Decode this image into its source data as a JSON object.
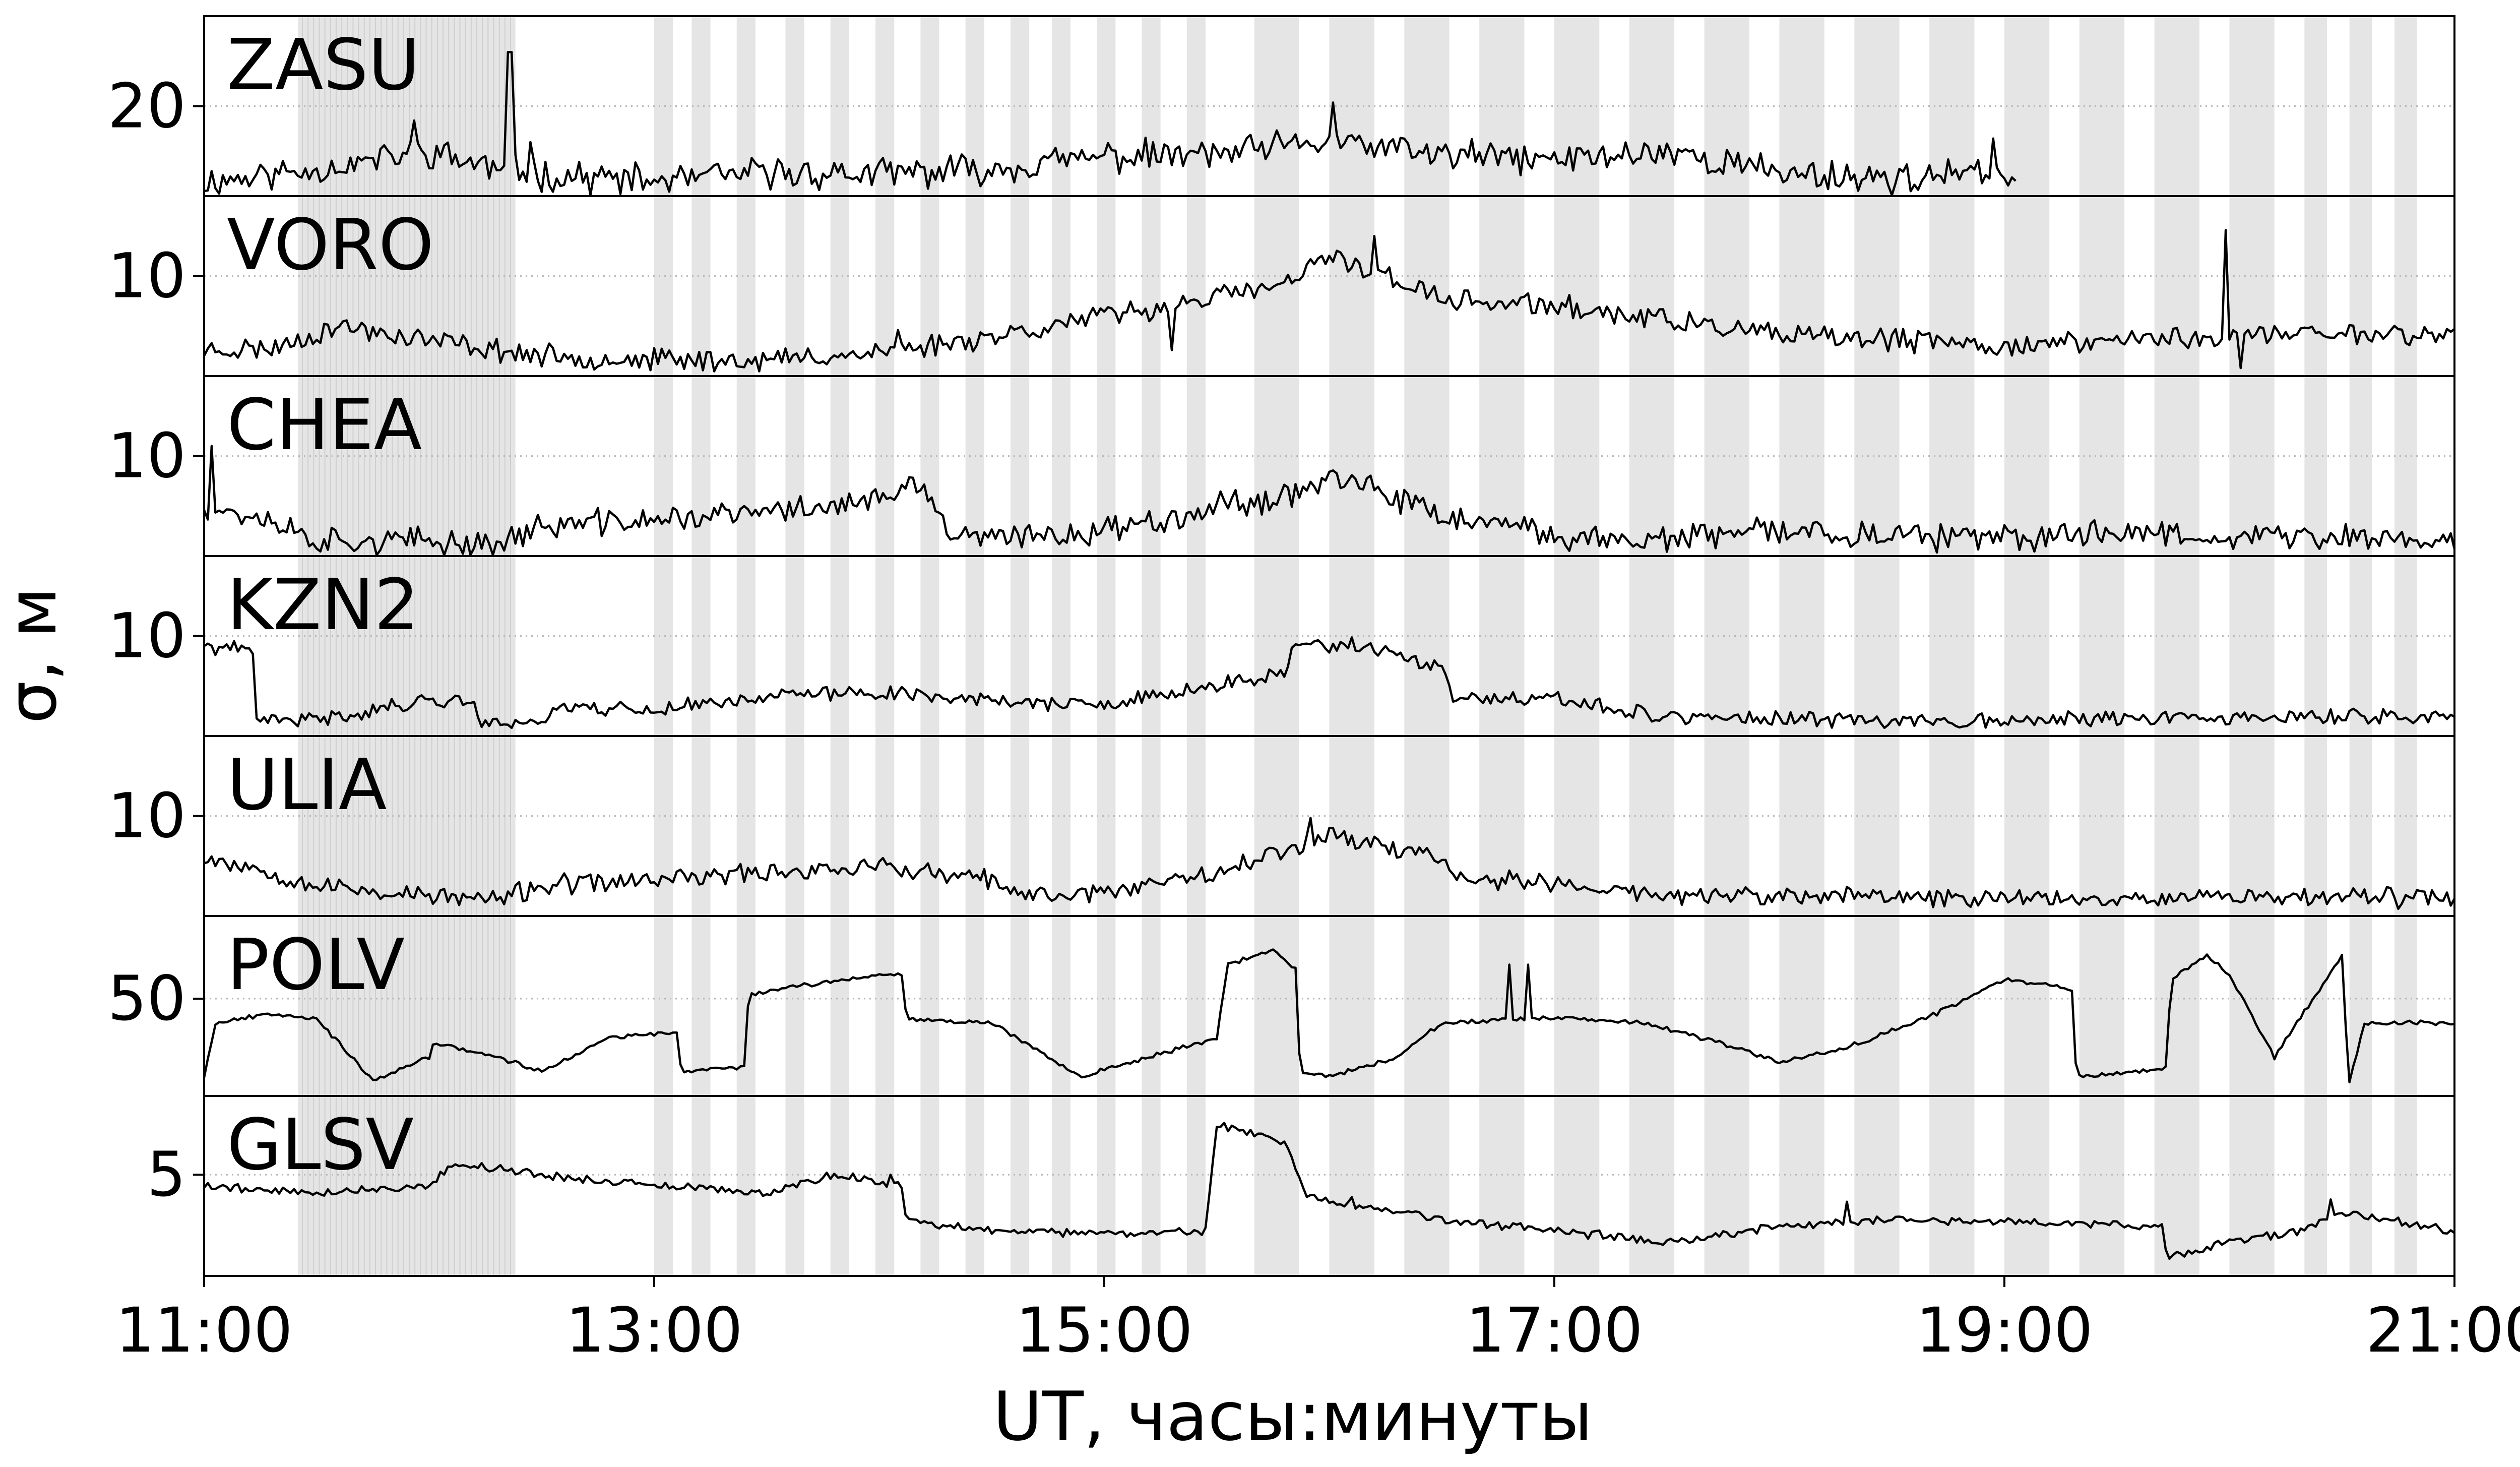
{
  "chart_data": {
    "type": "line",
    "layout": "stacked-panels",
    "xlabel": "UT, часы:минуты",
    "ylabel": "σ, м",
    "xlim": [
      "11:00",
      "21:00"
    ],
    "x_ticks": [
      "11:00",
      "13:00",
      "15:00",
      "17:00",
      "19:00",
      "21:00"
    ],
    "grid": "horizontal dotted at y ticks",
    "shaded_intervals": [
      [
        "11:25",
        "12:23"
      ],
      [
        "13:00",
        "13:05"
      ],
      [
        "13:10",
        "13:15"
      ],
      [
        "13:22",
        "13:27"
      ],
      [
        "13:35",
        "13:40"
      ],
      [
        "13:47",
        "13:52"
      ],
      [
        "13:59",
        "14:04"
      ],
      [
        "14:11",
        "14:16"
      ],
      [
        "14:23",
        "14:28"
      ],
      [
        "14:35",
        "14:40"
      ],
      [
        "14:46",
        "14:51"
      ],
      [
        "14:58",
        "15:03"
      ],
      [
        "15:10",
        "15:15"
      ],
      [
        "15:22",
        "15:27"
      ],
      [
        "15:40",
        "15:52"
      ],
      [
        "16:00",
        "16:12"
      ],
      [
        "16:20",
        "16:32"
      ],
      [
        "16:40",
        "16:52"
      ],
      [
        "17:00",
        "17:12"
      ],
      [
        "17:20",
        "17:32"
      ],
      [
        "17:40",
        "17:52"
      ],
      [
        "18:00",
        "18:12"
      ],
      [
        "18:20",
        "18:32"
      ],
      [
        "18:40",
        "18:52"
      ],
      [
        "19:00",
        "19:12"
      ],
      [
        "19:20",
        "19:32"
      ],
      [
        "19:40",
        "19:52"
      ],
      [
        "20:00",
        "20:12"
      ],
      [
        "20:20",
        "20:26"
      ],
      [
        "20:32",
        "20:38"
      ],
      [
        "20:44",
        "20:50"
      ]
    ],
    "panels": [
      {
        "station": "ZASU",
        "ylim": [
          15,
          25
        ],
        "yticks": [
          20
        ],
        "noise": 0.7,
        "seed": 11,
        "end": 19.05,
        "points": [
          [
            11.0,
            15.8
          ],
          [
            11.5,
            16.5
          ],
          [
            12.0,
            17.5
          ],
          [
            12.3,
            16.5
          ],
          [
            12.5,
            16.2
          ],
          [
            13.0,
            15.8
          ],
          [
            13.5,
            16.3
          ],
          [
            14.0,
            16.2
          ],
          [
            14.5,
            16.5
          ],
          [
            15.0,
            17.2
          ],
          [
            15.5,
            17.3
          ],
          [
            16.0,
            18.0
          ],
          [
            16.5,
            17.3
          ],
          [
            17.0,
            17.0
          ],
          [
            17.5,
            17.5
          ],
          [
            18.0,
            16.3
          ],
          [
            18.5,
            16.0
          ],
          [
            19.0,
            16.2
          ]
        ],
        "spikes": [
          [
            11.93,
            19.2
          ],
          [
            12.36,
            23.0
          ],
          [
            12.45,
            18.0
          ],
          [
            16.02,
            20.2
          ],
          [
            18.95,
            18.2
          ]
        ]
      },
      {
        "station": "VORO",
        "ylim": [
          5,
          14
        ],
        "yticks": [
          10
        ],
        "noise": 0.45,
        "seed": 23,
        "points": [
          [
            11.0,
            6.3
          ],
          [
            11.3,
            6.4
          ],
          [
            11.6,
            7.5
          ],
          [
            12.0,
            6.8
          ],
          [
            12.5,
            6.0
          ],
          [
            13.0,
            5.8
          ],
          [
            13.5,
            5.8
          ],
          [
            14.0,
            6.2
          ],
          [
            14.5,
            7.0
          ],
          [
            15.0,
            8.0
          ],
          [
            15.3,
            8.5
          ],
          [
            15.5,
            9.0
          ],
          [
            15.8,
            9.5
          ],
          [
            16.0,
            11.0
          ],
          [
            16.3,
            9.8
          ],
          [
            16.5,
            8.8
          ],
          [
            17.0,
            8.5
          ],
          [
            17.5,
            7.8
          ],
          [
            18.0,
            7.0
          ],
          [
            18.5,
            6.8
          ],
          [
            19.0,
            6.5
          ],
          [
            19.5,
            6.8
          ],
          [
            20.0,
            7.0
          ],
          [
            20.5,
            7.2
          ],
          [
            21.0,
            7.0
          ]
        ],
        "spikes": [
          [
            14.08,
            7.3
          ],
          [
            15.3,
            6.3
          ],
          [
            16.2,
            12.0
          ],
          [
            19.98,
            12.3
          ],
          [
            20.05,
            5.4
          ]
        ]
      },
      {
        "station": "CHEA",
        "ylim": [
          5,
          14
        ],
        "yticks": [
          10
        ],
        "noise": 0.55,
        "seed": 37,
        "points": [
          [
            11.0,
            7.5
          ],
          [
            11.3,
            6.8
          ],
          [
            11.5,
            5.8
          ],
          [
            12.0,
            5.7
          ],
          [
            12.3,
            5.6
          ],
          [
            12.5,
            6.5
          ],
          [
            13.0,
            6.8
          ],
          [
            13.5,
            7.2
          ],
          [
            14.0,
            7.8
          ],
          [
            14.2,
            8.5
          ],
          [
            14.3,
            6.2
          ],
          [
            14.5,
            5.8
          ],
          [
            15.0,
            6.3
          ],
          [
            15.5,
            7.5
          ],
          [
            15.8,
            8.0
          ],
          [
            16.0,
            9.0
          ],
          [
            16.3,
            7.8
          ],
          [
            16.5,
            7.0
          ],
          [
            17.0,
            6.0
          ],
          [
            17.5,
            5.8
          ],
          [
            18.0,
            6.3
          ],
          [
            18.5,
            6.0
          ],
          [
            19.0,
            5.8
          ],
          [
            19.5,
            6.3
          ],
          [
            20.0,
            6.0
          ],
          [
            21.0,
            5.8
          ]
        ],
        "spikes": [
          [
            11.03,
            10.5
          ]
        ]
      },
      {
        "station": "KZN2",
        "ylim": [
          5,
          14
        ],
        "yticks": [
          10
        ],
        "noise": 0.3,
        "seed": 41,
        "points": [
          [
            11.0,
            9.5
          ],
          [
            11.22,
            9.2
          ],
          [
            11.23,
            5.8
          ],
          [
            11.5,
            5.8
          ],
          [
            12.0,
            6.8
          ],
          [
            12.2,
            6.8
          ],
          [
            12.21,
            5.6
          ],
          [
            12.5,
            5.8
          ],
          [
            12.6,
            6.5
          ],
          [
            13.0,
            6.3
          ],
          [
            13.5,
            7.0
          ],
          [
            14.0,
            7.2
          ],
          [
            14.5,
            6.8
          ],
          [
            15.0,
            6.5
          ],
          [
            15.5,
            7.5
          ],
          [
            15.8,
            8.2
          ],
          [
            15.85,
            9.5
          ],
          [
            16.1,
            9.5
          ],
          [
            16.5,
            8.5
          ],
          [
            16.55,
            6.8
          ],
          [
            17.0,
            6.8
          ],
          [
            17.5,
            6.0
          ],
          [
            18.0,
            5.8
          ],
          [
            19.0,
            5.8
          ],
          [
            20.0,
            5.9
          ],
          [
            21.0,
            6.0
          ]
        ],
        "spikes": []
      },
      {
        "station": "ULIA",
        "ylim": [
          5,
          14
        ],
        "yticks": [
          10
        ],
        "noise": 0.4,
        "seed": 53,
        "points": [
          [
            11.0,
            8.0
          ],
          [
            11.3,
            7.2
          ],
          [
            11.5,
            6.5
          ],
          [
            12.0,
            6.0
          ],
          [
            12.3,
            5.8
          ],
          [
            12.5,
            6.5
          ],
          [
            13.0,
            6.8
          ],
          [
            13.5,
            7.2
          ],
          [
            14.0,
            7.5
          ],
          [
            14.3,
            7.0
          ],
          [
            14.5,
            6.8
          ],
          [
            14.6,
            6.0
          ],
          [
            15.0,
            6.2
          ],
          [
            15.5,
            7.3
          ],
          [
            15.8,
            8.2
          ],
          [
            16.0,
            9.2
          ],
          [
            16.3,
            8.3
          ],
          [
            16.5,
            8.0
          ],
          [
            16.55,
            7.0
          ],
          [
            17.0,
            6.6
          ],
          [
            17.5,
            6.0
          ],
          [
            18.0,
            6.0
          ],
          [
            19.0,
            5.9
          ],
          [
            20.0,
            6.0
          ],
          [
            21.0,
            5.9
          ]
        ],
        "spikes": [
          [
            15.92,
            9.9
          ]
        ]
      },
      {
        "station": "POLV",
        "ylim": [
          30,
          67
        ],
        "yticks": [
          50
        ],
        "noise": 0.35,
        "seed": 67,
        "points": [
          [
            11.0,
            34.0
          ],
          [
            11.05,
            45.0
          ],
          [
            11.3,
            47.0
          ],
          [
            11.5,
            46.0
          ],
          [
            11.75,
            33.0
          ],
          [
            12.0,
            38.0
          ],
          [
            12.02,
            41.0
          ],
          [
            12.3,
            38.0
          ],
          [
            12.5,
            35.0
          ],
          [
            12.8,
            42.0
          ],
          [
            13.1,
            43.0
          ],
          [
            13.12,
            35.0
          ],
          [
            13.4,
            36.0
          ],
          [
            13.42,
            51.0
          ],
          [
            14.0,
            55.0
          ],
          [
            14.1,
            55.0
          ],
          [
            14.12,
            46.0
          ],
          [
            14.5,
            45.0
          ],
          [
            14.9,
            34.0
          ],
          [
            15.2,
            38.0
          ],
          [
            15.5,
            42.0
          ],
          [
            15.55,
            57.0
          ],
          [
            15.75,
            60.0
          ],
          [
            15.85,
            56.0
          ],
          [
            15.87,
            35.0
          ],
          [
            16.0,
            34.0
          ],
          [
            16.3,
            38.0
          ],
          [
            16.5,
            45.0
          ],
          [
            17.0,
            46.0
          ],
          [
            17.4,
            45.0
          ],
          [
            17.8,
            40.0
          ],
          [
            18.0,
            37.0
          ],
          [
            18.3,
            40.0
          ],
          [
            18.7,
            47.0
          ],
          [
            19.0,
            54.0
          ],
          [
            19.3,
            52.0
          ],
          [
            19.32,
            34.0
          ],
          [
            19.6,
            35.0
          ],
          [
            19.72,
            36.0
          ],
          [
            19.74,
            54.0
          ],
          [
            19.9,
            59.0
          ],
          [
            20.0,
            55.0
          ],
          [
            20.2,
            38.0
          ],
          [
            20.5,
            59.0
          ],
          [
            20.53,
            32.0
          ],
          [
            20.6,
            45.0
          ],
          [
            21.0,
            45.0
          ]
        ],
        "spikes": [
          [
            16.8,
            57.0
          ],
          [
            16.88,
            57.0
          ]
        ]
      },
      {
        "station": "GLSV",
        "ylim": [
          0.5,
          8.5
        ],
        "yticks": [
          5
        ],
        "noise": 0.15,
        "seed": 79,
        "points": [
          [
            11.0,
            4.5
          ],
          [
            11.5,
            4.2
          ],
          [
            12.0,
            4.5
          ],
          [
            12.1,
            5.5
          ],
          [
            12.5,
            5.0
          ],
          [
            13.0,
            4.5
          ],
          [
            13.5,
            4.2
          ],
          [
            13.8,
            5.0
          ],
          [
            14.1,
            4.5
          ],
          [
            14.12,
            3.0
          ],
          [
            14.5,
            2.5
          ],
          [
            15.0,
            2.4
          ],
          [
            15.45,
            2.5
          ],
          [
            15.5,
            7.2
          ],
          [
            15.8,
            6.5
          ],
          [
            15.9,
            4.0
          ],
          [
            16.5,
            3.0
          ],
          [
            17.0,
            2.5
          ],
          [
            17.5,
            2.0
          ],
          [
            18.0,
            2.7
          ],
          [
            18.5,
            3.0
          ],
          [
            19.0,
            2.9
          ],
          [
            19.5,
            2.8
          ],
          [
            19.7,
            2.6
          ],
          [
            19.72,
            1.3
          ],
          [
            20.0,
            2.0
          ],
          [
            20.3,
            2.5
          ],
          [
            20.5,
            3.3
          ],
          [
            21.0,
            2.5
          ]
        ],
        "spikes": [
          [
            14.05,
            5.0
          ],
          [
            16.1,
            4.0
          ],
          [
            18.3,
            3.8
          ],
          [
            20.45,
            3.9
          ]
        ]
      }
    ]
  }
}
